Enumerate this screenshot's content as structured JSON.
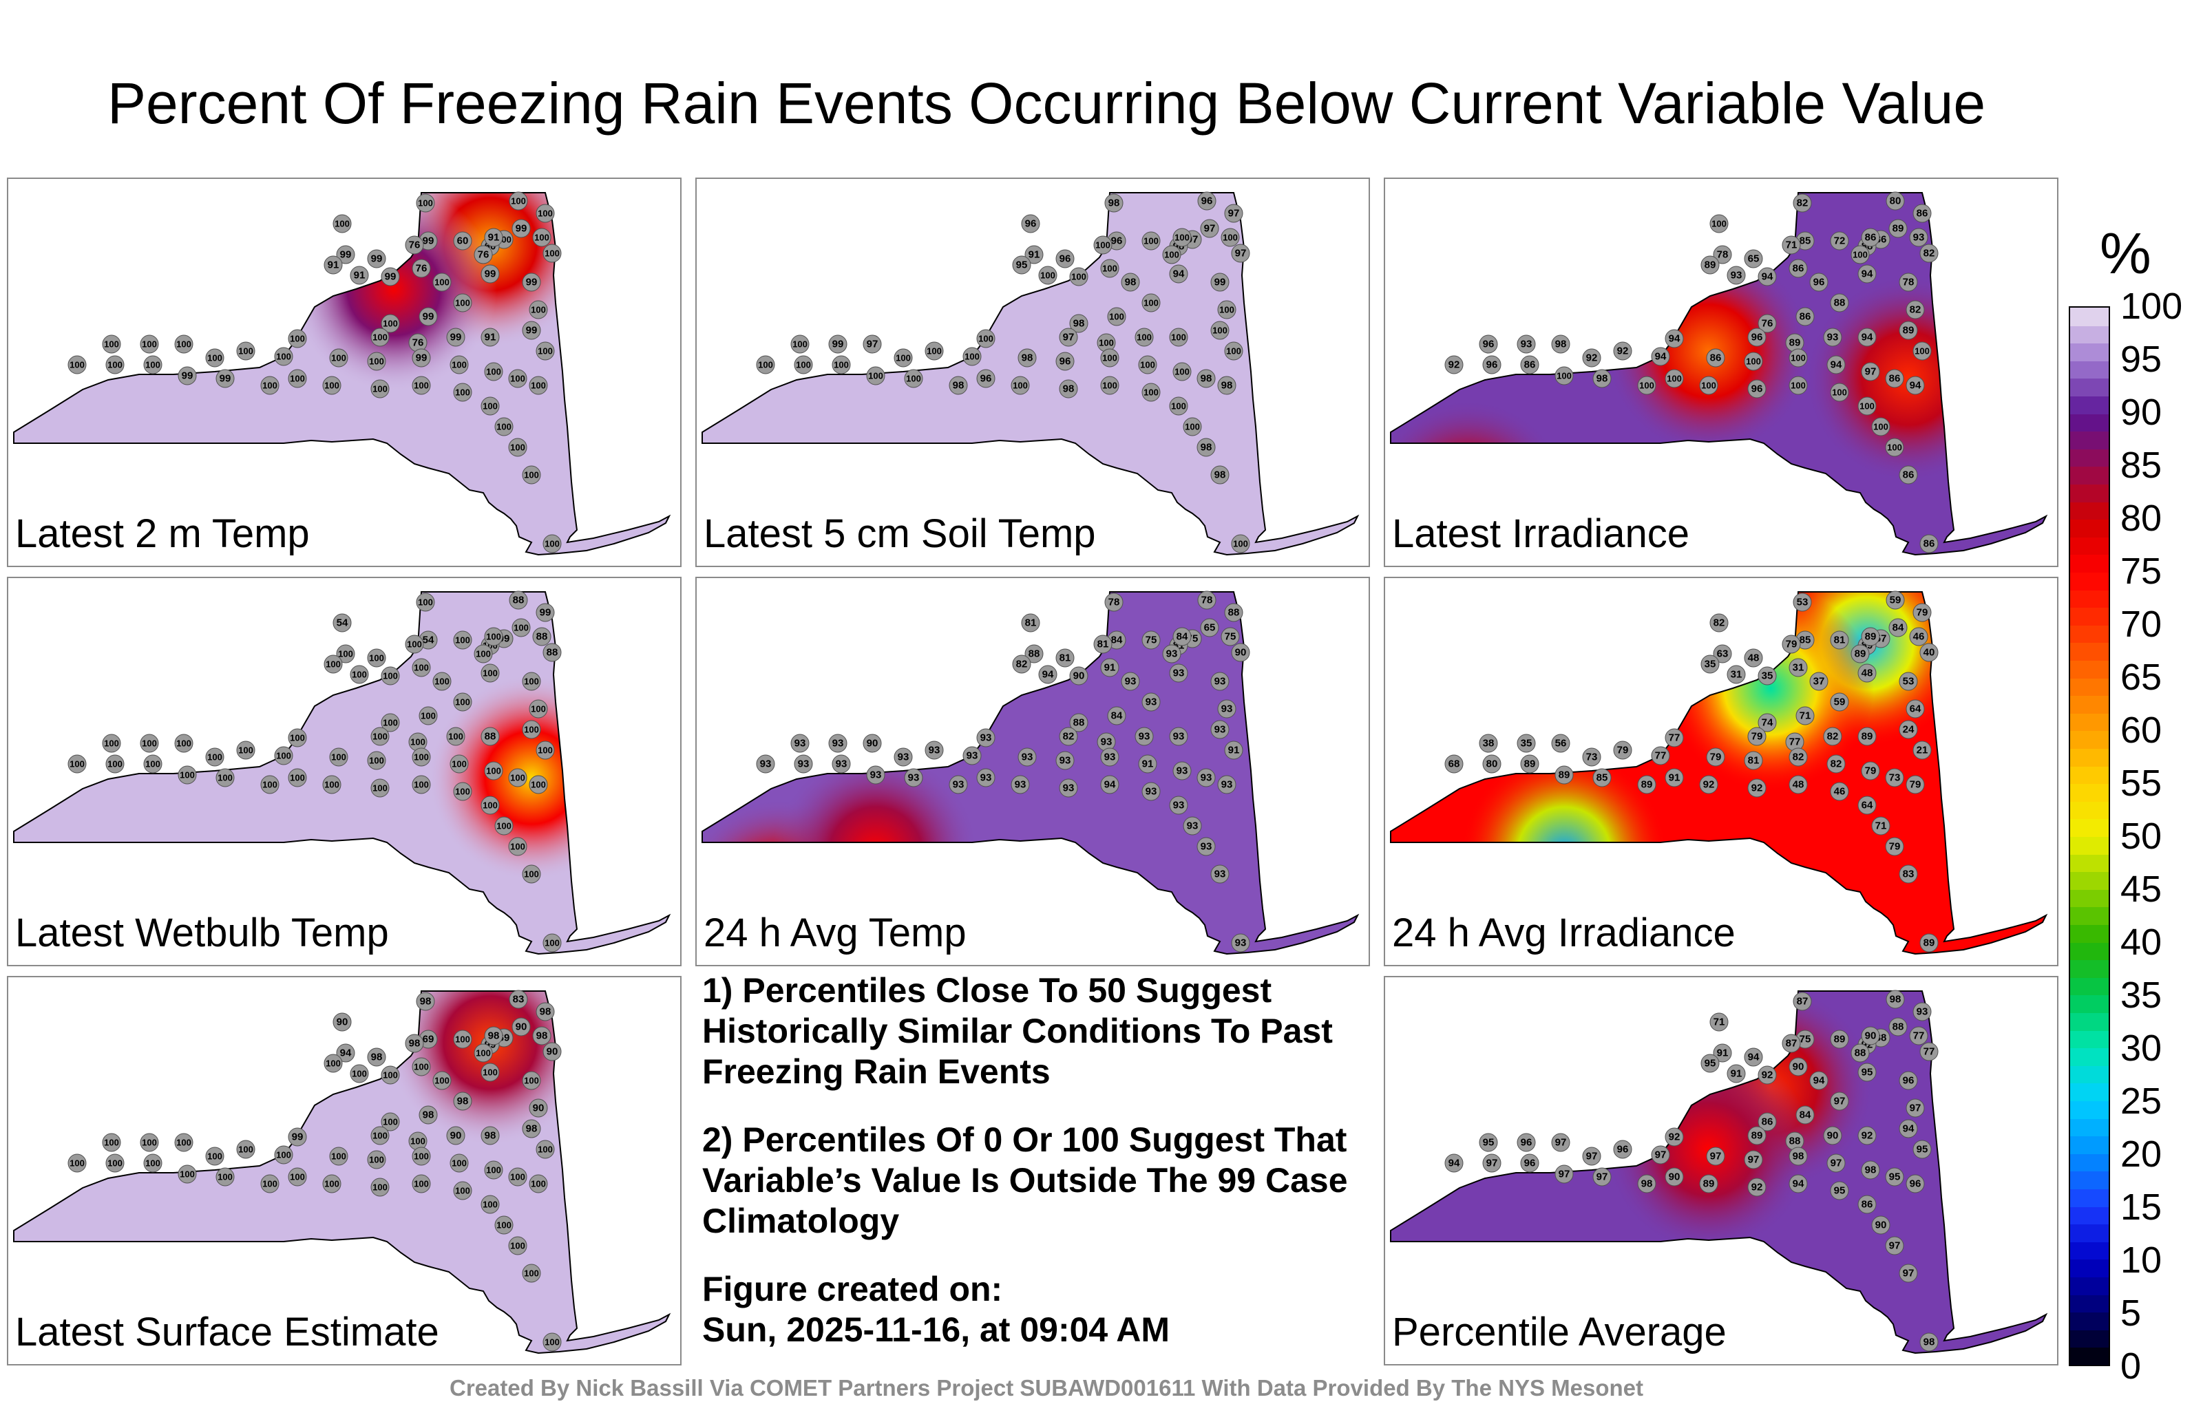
{
  "title": "Percent Of Freezing Rain Events Occurring Below Current Variable Value",
  "panels": [
    {
      "label": "Latest 2 m Temp",
      "base": 98,
      "station_values": [
        100,
        100,
        100,
        100,
        99,
        100,
        99,
        100,
        100,
        99,
        91,
        99,
        76,
        60,
        60,
        91,
        76,
        76,
        91,
        99,
        100,
        99,
        99,
        100,
        100,
        99,
        100,
        100,
        76,
        99,
        91,
        99,
        100,
        100,
        100,
        100,
        100,
        100,
        100,
        100,
        100,
        100,
        99,
        100,
        100,
        100,
        100,
        100,
        100,
        100,
        99,
        99,
        100,
        100,
        100,
        100,
        100,
        100,
        100,
        100,
        100,
        100,
        100
      ],
      "hot": [
        {
          "value": 60
        },
        {
          "value": 76
        }
      ]
    },
    {
      "label": "Latest 5 cm Soil Temp",
      "base": 98,
      "station_values": [
        98,
        96,
        97,
        96,
        96,
        97,
        97,
        100,
        97,
        91,
        95,
        96,
        100,
        100,
        98,
        100,
        100,
        100,
        100,
        100,
        98,
        94,
        99,
        100,
        100,
        100,
        98,
        97,
        100,
        100,
        100,
        100,
        100,
        100,
        99,
        97,
        100,
        100,
        100,
        100,
        98,
        96,
        100,
        100,
        100,
        98,
        98,
        100,
        100,
        100,
        100,
        100,
        98,
        96,
        100,
        98,
        100,
        100,
        100,
        100,
        98,
        98,
        100
      ],
      "hot": []
    },
    {
      "label": "Latest Irradiance",
      "base": 92,
      "station_values": [
        82,
        80,
        86,
        100,
        85,
        86,
        89,
        93,
        82,
        78,
        89,
        65,
        71,
        72,
        88,
        86,
        100,
        86,
        93,
        94,
        96,
        94,
        78,
        82,
        88,
        86,
        76,
        96,
        89,
        93,
        94,
        89,
        100,
        96,
        93,
        98,
        92,
        92,
        94,
        94,
        86,
        100,
        100,
        94,
        97,
        86,
        94,
        92,
        96,
        86,
        100,
        98,
        100,
        100,
        100,
        96,
        100,
        100,
        100,
        100,
        100,
        86,
        86
      ],
      "hot": [
        {
          "value": 65
        },
        {
          "value": 71
        },
        {
          "value": 72
        }
      ]
    },
    {
      "label": "Latest Wetbulb Temp",
      "base": 98,
      "station_values": [
        100,
        88,
        99,
        54,
        54,
        99,
        100,
        88,
        88,
        100,
        100,
        100,
        100,
        100,
        100,
        100,
        100,
        100,
        100,
        100,
        100,
        100,
        100,
        100,
        100,
        100,
        100,
        100,
        100,
        100,
        88,
        100,
        100,
        100,
        100,
        100,
        100,
        100,
        100,
        100,
        100,
        100,
        100,
        100,
        100,
        100,
        100,
        100,
        100,
        100,
        100,
        100,
        100,
        100,
        100,
        100,
        100,
        100,
        100,
        100,
        100,
        100,
        100
      ],
      "hot": [
        {
          "value": 54
        }
      ]
    },
    {
      "label": "24 h Avg Temp",
      "base": 93,
      "station_values": [
        78,
        78,
        88,
        81,
        84,
        75,
        65,
        75,
        90,
        88,
        82,
        81,
        81,
        75,
        81,
        84,
        93,
        91,
        94,
        90,
        93,
        93,
        93,
        93,
        93,
        84,
        88,
        82,
        93,
        93,
        93,
        93,
        91,
        93,
        93,
        90,
        93,
        93,
        93,
        93,
        93,
        93,
        93,
        91,
        93,
        93,
        93,
        93,
        93,
        93,
        93,
        93,
        93,
        93,
        93,
        93,
        94,
        93,
        93,
        93,
        93,
        93,
        93
      ],
      "hot": [
        {
          "value": 65
        },
        {
          "value": 75
        }
      ]
    },
    {
      "label": "24 h Avg Irradiance",
      "base": 75,
      "station_values": [
        53,
        59,
        79,
        82,
        85,
        57,
        84,
        46,
        40,
        63,
        35,
        48,
        79,
        81,
        89,
        89,
        89,
        31,
        31,
        35,
        37,
        48,
        53,
        64,
        59,
        71,
        74,
        79,
        77,
        82,
        89,
        24,
        21,
        38,
        35,
        56,
        73,
        79,
        77,
        77,
        79,
        81,
        82,
        82,
        79,
        73,
        79,
        68,
        80,
        89,
        89,
        85,
        89,
        91,
        92,
        92,
        48,
        46,
        64,
        71,
        79,
        83,
        89
      ],
      "hot": [
        {
          "value": 21
        },
        {
          "value": 24
        },
        {
          "value": 31
        }
      ]
    },
    {
      "label": "Latest Surface Estimate",
      "base": 98,
      "station_values": [
        98,
        83,
        98,
        90,
        69,
        69,
        90,
        98,
        90,
        94,
        100,
        98,
        98,
        100,
        99,
        98,
        100,
        100,
        100,
        100,
        100,
        100,
        100,
        90,
        98,
        98,
        100,
        100,
        100,
        90,
        98,
        98,
        100,
        100,
        100,
        100,
        100,
        100,
        100,
        99,
        100,
        100,
        100,
        100,
        100,
        100,
        100,
        100,
        100,
        100,
        100,
        100,
        100,
        100,
        100,
        100,
        100,
        100,
        100,
        100,
        100,
        100,
        100
      ],
      "hot": [
        {
          "value": 69
        }
      ]
    },
    {
      "label": "Percentile Average",
      "base": 92,
      "station_values": [
        87,
        98,
        93,
        71,
        75,
        88,
        88,
        77,
        77,
        91,
        95,
        94,
        87,
        89,
        92,
        90,
        88,
        90,
        91,
        92,
        94,
        95,
        96,
        97,
        97,
        84,
        86,
        89,
        88,
        90,
        92,
        94,
        95,
        95,
        96,
        97,
        97,
        96,
        97,
        92,
        97,
        97,
        98,
        97,
        98,
        95,
        96,
        94,
        97,
        96,
        97,
        97,
        98,
        90,
        89,
        92,
        94,
        95,
        86,
        90,
        97,
        97,
        98
      ],
      "hot": [
        {
          "value": 71
        },
        {
          "value": 75
        }
      ]
    }
  ],
  "notes": {
    "n1": "1) Percentiles Close To 50 Suggest Historically Similar Conditions To Past Freezing Rain Events",
    "n2": "2) Percentiles Of 0 Or 100 Suggest That Variable’s Value Is Outside The 99 Case Climatology",
    "created_label": "Figure created on:",
    "created_date": "Sun, 2025-11-16, at 09:04 AM"
  },
  "footer": "Created By Nick Bassill Via COMET Partners Project SUBAWD001611 With Data Provided By The NYS Mesonet",
  "colorbar": {
    "unit": "%",
    "ticks": [
      "0",
      "5",
      "10",
      "15",
      "20",
      "25",
      "30",
      "35",
      "40",
      "45",
      "50",
      "55",
      "60",
      "65",
      "70",
      "75",
      "80",
      "85",
      "90",
      "95",
      "100"
    ]
  }
}
